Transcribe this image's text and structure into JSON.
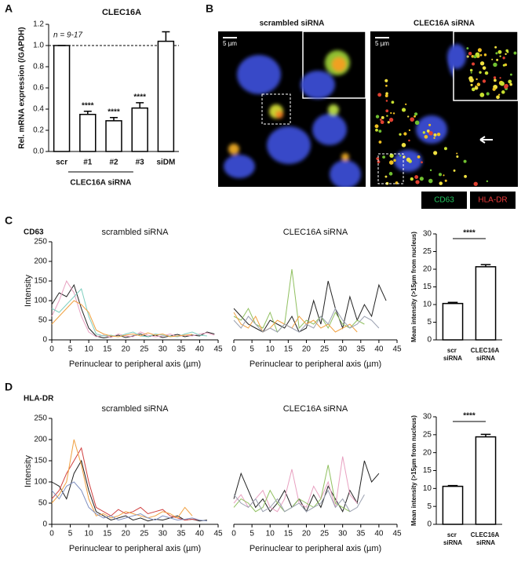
{
  "panel_labels": [
    "A",
    "B",
    "C",
    "D"
  ],
  "row_labels": [
    "CD63",
    "HLA-DR"
  ],
  "images": {
    "left_title": "scrambled siRNA",
    "right_title": "CLEC16A siRNA",
    "scale_left": "5 µm",
    "scale_right": "5 µm",
    "legend": [
      {
        "label": "CD63",
        "color": "#22c55e"
      },
      {
        "label": "HLA-DR",
        "color": "#ef3b3b"
      }
    ]
  },
  "chart_data": [
    {
      "type": "bar",
      "title": "CLEC16A",
      "ylabel": "Rel. mRNA expression (/GAPDH)",
      "annotation": "n = 9-17",
      "categories": [
        "scr",
        "#1",
        "#2",
        "#3",
        "siDM"
      ],
      "values": [
        1.0,
        0.35,
        0.29,
        0.41,
        1.04
      ],
      "errors": [
        0,
        0.03,
        0.03,
        0.05,
        0.09
      ],
      "value_annotations": [
        null,
        "****",
        "****",
        "****",
        null
      ],
      "group_label": "CLEC16A siRNA",
      "reference_line": 1.0,
      "ylim": [
        0,
        1.2
      ],
      "yticks": [
        {
          "value": 0,
          "label": "0.0"
        },
        0.2,
        0.4,
        0.6,
        0.8,
        {
          "value": 1,
          "label": "1.0"
        },
        1.2
      ]
    },
    {
      "type": "line",
      "title": "scrambled siRNA",
      "xlabel": "Perinuclear to peripheral axis (µm)",
      "ylabel": "Intensity",
      "x": [
        0,
        2,
        4,
        6,
        8,
        10,
        12,
        14,
        16,
        18,
        20,
        22,
        24,
        26,
        28,
        30,
        32,
        34,
        36,
        38,
        40,
        42,
        44
      ],
      "series": [
        {
          "color": "#222222",
          "values": [
            90,
            120,
            110,
            140,
            80,
            30,
            10,
            5,
            8,
            12,
            6,
            10,
            15,
            8,
            12,
            6,
            10,
            14,
            8,
            12,
            10,
            20,
            15
          ]
        },
        {
          "color": "#e8a0c0",
          "values": [
            60,
            100,
            150,
            120,
            60,
            20,
            8,
            12,
            6,
            15,
            10,
            8,
            20,
            12,
            8,
            10,
            15,
            8,
            12,
            10,
            15,
            18,
            12
          ]
        },
        {
          "color": "#7fcfc0",
          "values": [
            80,
            70,
            90,
            110,
            130,
            60,
            15,
            10,
            12,
            8,
            15,
            20,
            10,
            8,
            15,
            12,
            10,
            8,
            15,
            20,
            12,
            10,
            null
          ]
        },
        {
          "color": "#f0a040",
          "values": [
            40,
            60,
            80,
            100,
            90,
            70,
            25,
            15,
            10,
            8,
            12,
            15,
            10,
            18,
            12,
            15,
            8,
            10,
            12,
            14,
            null,
            null,
            null
          ]
        }
      ],
      "xlim": [
        0,
        45
      ],
      "xticks": [
        0,
        5,
        10,
        15,
        20,
        25,
        30,
        35,
        40,
        45
      ],
      "ylim": [
        0,
        250
      ],
      "yticks": [
        0,
        50,
        100,
        150,
        200,
        250
      ]
    },
    {
      "type": "line",
      "title": "CLEC16A siRNA",
      "xlabel": "Perinuclear to peripheral axis (µm)",
      "x": [
        0,
        2,
        4,
        6,
        8,
        10,
        12,
        14,
        16,
        18,
        20,
        22,
        24,
        26,
        28,
        30,
        32,
        34,
        36,
        38,
        40,
        42,
        44
      ],
      "series": [
        {
          "color": "#222222",
          "values": [
            80,
            60,
            40,
            30,
            20,
            50,
            40,
            30,
            60,
            20,
            30,
            100,
            40,
            150,
            80,
            30,
            110,
            50,
            90,
            60,
            140,
            100,
            null
          ]
        },
        {
          "color": "#90c060",
          "values": [
            60,
            50,
            80,
            40,
            30,
            70,
            20,
            40,
            180,
            30,
            50,
            40,
            60,
            30,
            70,
            40,
            30,
            50,
            40,
            null,
            null,
            null,
            null
          ]
        },
        {
          "color": "#f0a040",
          "values": [
            70,
            40,
            30,
            60,
            20,
            30,
            50,
            40,
            30,
            60,
            40,
            50,
            30,
            40,
            20,
            30,
            40,
            20,
            null,
            null,
            null,
            null,
            null
          ]
        },
        {
          "color": "#9aa0b0",
          "values": [
            50,
            30,
            60,
            40,
            20,
            30,
            20,
            40,
            30,
            20,
            40,
            30,
            60,
            40,
            80,
            50,
            30,
            40,
            60,
            50,
            30,
            null,
            null
          ]
        }
      ],
      "xlim": [
        0,
        45
      ],
      "xticks": [
        0,
        5,
        10,
        15,
        20,
        25,
        30,
        35,
        40,
        45
      ],
      "ylim": [
        0,
        250
      ]
    },
    {
      "type": "bar",
      "ylabel": "Mean intensity (>15µm from nucleus)",
      "categories": [
        "scr siRNA",
        "CLEC16A siRNA"
      ],
      "values": [
        10.3,
        20.7
      ],
      "errors": [
        0.3,
        0.6
      ],
      "significance": "****",
      "ylim": [
        0,
        30
      ],
      "yticks": [
        0,
        5,
        10,
        15,
        20,
        25,
        30
      ]
    },
    {
      "type": "line",
      "title": "scrambled siRNA",
      "xlabel": "Perinuclear to peripheral axis (µm)",
      "ylabel": "Intensity",
      "x": [
        0,
        2,
        4,
        6,
        8,
        10,
        12,
        14,
        16,
        18,
        20,
        22,
        24,
        26,
        28,
        30,
        32,
        34,
        36,
        38,
        40,
        42,
        44
      ],
      "series": [
        {
          "color": "#222222",
          "values": [
            100,
            90,
            60,
            120,
            150,
            80,
            30,
            20,
            10,
            15,
            20,
            10,
            15,
            8,
            12,
            10,
            15,
            20,
            10,
            12,
            8,
            10,
            null
          ]
        },
        {
          "color": "#d04040",
          "values": [
            60,
            80,
            120,
            150,
            180,
            100,
            40,
            30,
            20,
            35,
            25,
            30,
            40,
            25,
            30,
            35,
            20,
            15,
            10,
            12,
            10,
            null,
            null
          ]
        },
        {
          "color": "#f0a040",
          "values": [
            50,
            70,
            100,
            200,
            140,
            60,
            20,
            25,
            15,
            20,
            30,
            25,
            20,
            15,
            20,
            30,
            25,
            15,
            40,
            20,
            null,
            null,
            null
          ]
        },
        {
          "color": "#8090c0",
          "values": [
            80,
            60,
            90,
            100,
            80,
            40,
            25,
            15,
            20,
            10,
            15,
            20,
            25,
            15,
            10,
            20,
            15,
            10,
            12,
            15,
            10,
            8,
            null
          ]
        }
      ],
      "xlim": [
        0,
        45
      ],
      "xticks": [
        0,
        5,
        10,
        15,
        20,
        25,
        30,
        35,
        40,
        45
      ],
      "ylim": [
        0,
        250
      ],
      "yticks": [
        0,
        50,
        100,
        150,
        200,
        250
      ]
    },
    {
      "type": "line",
      "title": "CLEC16A siRNA",
      "xlabel": "Perinuclear to peripheral axis (µm)",
      "x": [
        0,
        2,
        4,
        6,
        8,
        10,
        12,
        14,
        16,
        18,
        20,
        22,
        24,
        26,
        28,
        30,
        32,
        34,
        36,
        38,
        40,
        42,
        44
      ],
      "series": [
        {
          "color": "#222222",
          "values": [
            60,
            120,
            80,
            40,
            60,
            30,
            50,
            80,
            40,
            60,
            30,
            70,
            40,
            90,
            60,
            30,
            80,
            50,
            150,
            100,
            120,
            null,
            null
          ]
        },
        {
          "color": "#e8a0c0",
          "values": [
            50,
            70,
            40,
            60,
            80,
            40,
            30,
            60,
            130,
            50,
            40,
            90,
            60,
            100,
            40,
            160,
            70,
            50,
            null,
            null,
            null,
            null,
            null
          ]
        },
        {
          "color": "#90c060",
          "values": [
            40,
            60,
            50,
            30,
            40,
            80,
            50,
            30,
            40,
            60,
            50,
            40,
            60,
            140,
            50,
            40,
            30,
            null,
            null,
            null,
            null,
            null,
            null
          ]
        },
        {
          "color": "#9aa0b0",
          "values": [
            70,
            50,
            40,
            60,
            30,
            40,
            60,
            30,
            40,
            50,
            30,
            40,
            50,
            80,
            40,
            60,
            30,
            40,
            70,
            null,
            null,
            null,
            null
          ]
        }
      ],
      "xlim": [
        0,
        45
      ],
      "xticks": [
        0,
        5,
        10,
        15,
        20,
        25,
        30,
        35,
        40,
        45
      ],
      "ylim": [
        0,
        250
      ]
    },
    {
      "type": "bar",
      "ylabel": "Mean intensity (>15µm from nucleus)",
      "categories": [
        "scr siRNA",
        "CLEC16A siRNA"
      ],
      "values": [
        10.6,
        24.4
      ],
      "errors": [
        0.2,
        0.7
      ],
      "significance": "****",
      "ylim": [
        0,
        30
      ],
      "yticks": [
        0,
        5,
        10,
        15,
        20,
        25,
        30
      ]
    }
  ]
}
